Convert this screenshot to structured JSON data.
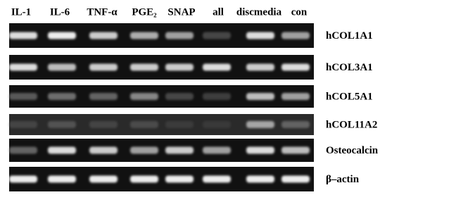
{
  "columns": [
    "IL-1",
    "IL-6",
    "TNF-α",
    "PGE₂",
    "SNAP",
    "all",
    "discmedia",
    "con"
  ],
  "rows": [
    "hCOL1A1",
    "hCOL3A1",
    "hCOL5A1",
    "hCOL11A2",
    "Osteocalcin",
    "β–actin"
  ]
}
